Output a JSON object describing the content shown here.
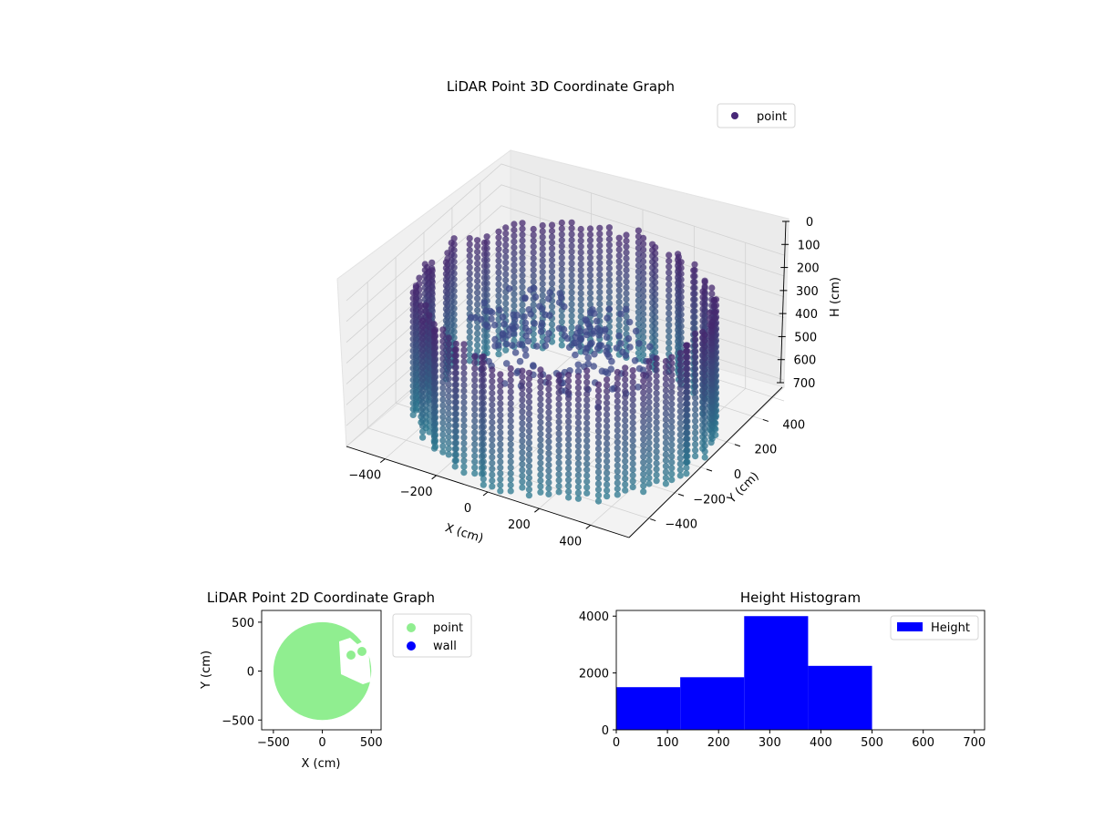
{
  "chart_data": [
    {
      "type": "scatter",
      "projection": "3d",
      "title": "LiDAR Point 3D Coordinate Graph",
      "xlabel": "X (cm)",
      "ylabel": "Y (cm)",
      "zlabel": "H (cm)",
      "xlim": [
        -550,
        550
      ],
      "ylim": [
        -550,
        550
      ],
      "zlim": [
        0,
        700
      ],
      "z_inverted": true,
      "xticks": [
        "−400",
        "−200",
        "0",
        "200",
        "400"
      ],
      "yticks": [
        "−400",
        "−200",
        "0",
        "200",
        "400"
      ],
      "zticks": [
        "0",
        "100",
        "200",
        "300",
        "400",
        "500",
        "600",
        "700"
      ],
      "legend": {
        "position": "top-right",
        "entries": [
          "point"
        ]
      },
      "legend_color": "#482878",
      "colormap": "viridis",
      "grid": true,
      "series": [
        {
          "name": "point",
          "shape": "cylindrical wall",
          "radius": 500,
          "h_range": [
            80,
            700
          ],
          "color_top": "#46286f",
          "color_bottom": "#2a788e"
        },
        {
          "name": "point",
          "shape": "interior cluster",
          "h_range": [
            250,
            550
          ],
          "color": "#3e4a89"
        }
      ]
    },
    {
      "type": "scatter",
      "title": "LiDAR Point 2D Coordinate Graph",
      "xlabel": "X (cm)",
      "ylabel": "Y (cm)",
      "xlim": [
        -620,
        600
      ],
      "ylim": [
        -600,
        620
      ],
      "xticks": [
        "−500",
        "0",
        "500"
      ],
      "yticks": [
        "−500",
        "0",
        "500"
      ],
      "legend": {
        "position": "outside-right",
        "entries": [
          "point",
          "wall"
        ]
      },
      "series": [
        {
          "name": "point",
          "color": "#90ee90",
          "shape": "filled disk",
          "center": [
            0,
            0
          ],
          "radius": 500
        },
        {
          "name": "wall",
          "color": "#0000ff"
        }
      ]
    },
    {
      "type": "bar",
      "subtype": "histogram",
      "title": "Height Histogram",
      "xlabel": "",
      "ylabel": "",
      "xlim": [
        0,
        720
      ],
      "ylim": [
        0,
        4200
      ],
      "xticks": [
        "0",
        "100",
        "200",
        "300",
        "400",
        "500",
        "600",
        "700"
      ],
      "yticks": [
        "0",
        "2000",
        "4000"
      ],
      "bin_edges": [
        0,
        125,
        250,
        375,
        500
      ],
      "values": [
        1500,
        1850,
        4000,
        2250
      ],
      "series": [
        {
          "name": "Height",
          "color": "#0000ff"
        }
      ],
      "legend": {
        "position": "top-right",
        "entries": [
          "Height"
        ]
      }
    }
  ]
}
